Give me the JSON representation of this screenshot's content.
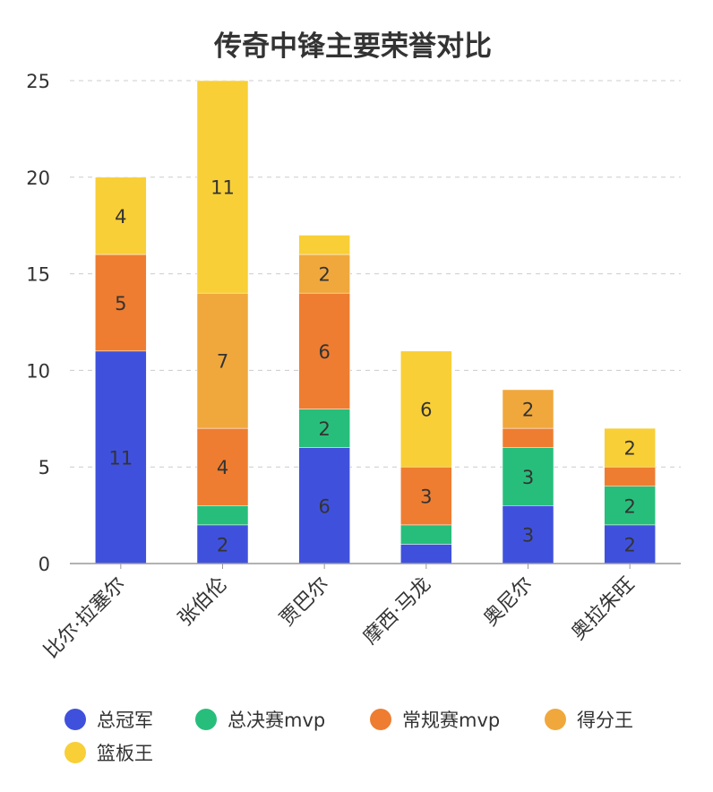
{
  "chart_data": {
    "type": "bar",
    "stacked": true,
    "title": "传奇中锋主要荣誉对比",
    "xlabel": "",
    "ylabel": "",
    "ylim": [
      0,
      25
    ],
    "yticks": [
      "0",
      "5",
      "10",
      "15",
      "20",
      "25"
    ],
    "grid": true,
    "legend_position": "bottom",
    "categories": [
      "比尔·拉塞尔",
      "张伯伦",
      "贾巴尔",
      "摩西·马龙",
      "奥尼尔",
      "奥拉朱旺"
    ],
    "series": [
      {
        "name": "总冠军",
        "color": "#3f51dc",
        "values": [
          11,
          2,
          6,
          1,
          3,
          2
        ]
      },
      {
        "name": "总决赛mvp",
        "color": "#27be7b",
        "values": [
          0,
          1,
          2,
          1,
          3,
          2
        ]
      },
      {
        "name": "常规赛mvp",
        "color": "#ee7d31",
        "values": [
          5,
          4,
          6,
          3,
          1,
          1
        ]
      },
      {
        "name": "得分王",
        "color": "#f0a83c",
        "values": [
          0,
          7,
          2,
          0,
          2,
          0
        ]
      },
      {
        "name": "篮板王",
        "color": "#f8cf36",
        "values": [
          4,
          11,
          1,
          6,
          0,
          2
        ]
      }
    ]
  }
}
